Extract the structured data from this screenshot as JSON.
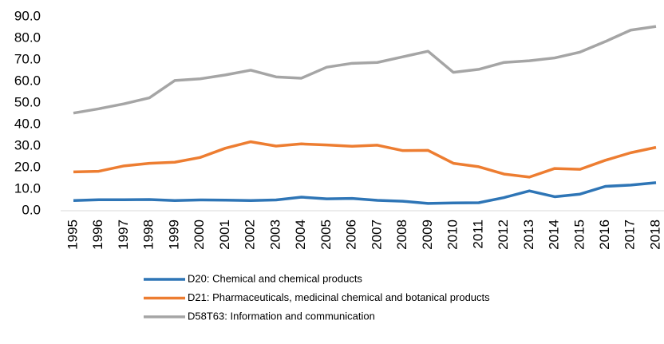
{
  "chart_data": {
    "type": "line",
    "categories": [
      "1995",
      "1996",
      "1997",
      "1998",
      "1999",
      "2000",
      "2001",
      "2002",
      "2003",
      "2004",
      "2005",
      "2006",
      "2007",
      "2008",
      "2009",
      "2010",
      "2011",
      "2012",
      "2013",
      "2014",
      "2015",
      "2016",
      "2017",
      "2018"
    ],
    "series": [
      {
        "name": "D20: Chemical and chemical products",
        "color": "#2e75b6",
        "values": [
          4.7,
          5.1,
          5.1,
          5.2,
          4.7,
          5.0,
          4.9,
          4.7,
          5.0,
          6.3,
          5.5,
          5.7,
          4.8,
          4.4,
          3.4,
          3.6,
          3.7,
          6.1,
          9.2,
          6.5,
          7.7,
          11.3,
          11.9,
          13.0
        ]
      },
      {
        "name": "D21: Pharmaceuticals, medicinal chemical and botanical products",
        "color": "#ed7d31",
        "values": [
          18.0,
          18.3,
          20.8,
          22.0,
          22.5,
          24.7,
          29.0,
          32.0,
          30.0,
          31.0,
          30.5,
          29.9,
          30.4,
          27.9,
          28.0,
          22.0,
          20.4,
          17.0,
          15.6,
          19.6,
          19.2,
          23.4,
          26.9,
          29.4
        ]
      },
      {
        "name": "D58T63: Information and communication",
        "color": "#a5a5a5",
        "values": [
          45.3,
          47.3,
          49.6,
          52.4,
          60.4,
          61.2,
          63.0,
          65.2,
          62.1,
          61.5,
          66.6,
          68.4,
          68.8,
          71.4,
          74.0,
          64.2,
          65.6,
          68.8,
          69.6,
          70.9,
          73.6,
          78.5,
          83.8,
          85.5
        ]
      }
    ],
    "ylim": [
      0,
      90
    ],
    "yticks": [
      {
        "value": 0,
        "label": "0.0"
      },
      {
        "value": 10,
        "label": "10.0"
      },
      {
        "value": 20,
        "label": "20.0"
      },
      {
        "value": 30,
        "label": "30.0"
      },
      {
        "value": 40,
        "label": "40.0"
      },
      {
        "value": 50,
        "label": "50.0"
      },
      {
        "value": 60,
        "label": "60.0"
      },
      {
        "value": 70,
        "label": "70.0"
      },
      {
        "value": 80,
        "label": "80.0"
      },
      {
        "value": 90,
        "label": "90.0"
      }
    ],
    "legend": "bottom"
  }
}
